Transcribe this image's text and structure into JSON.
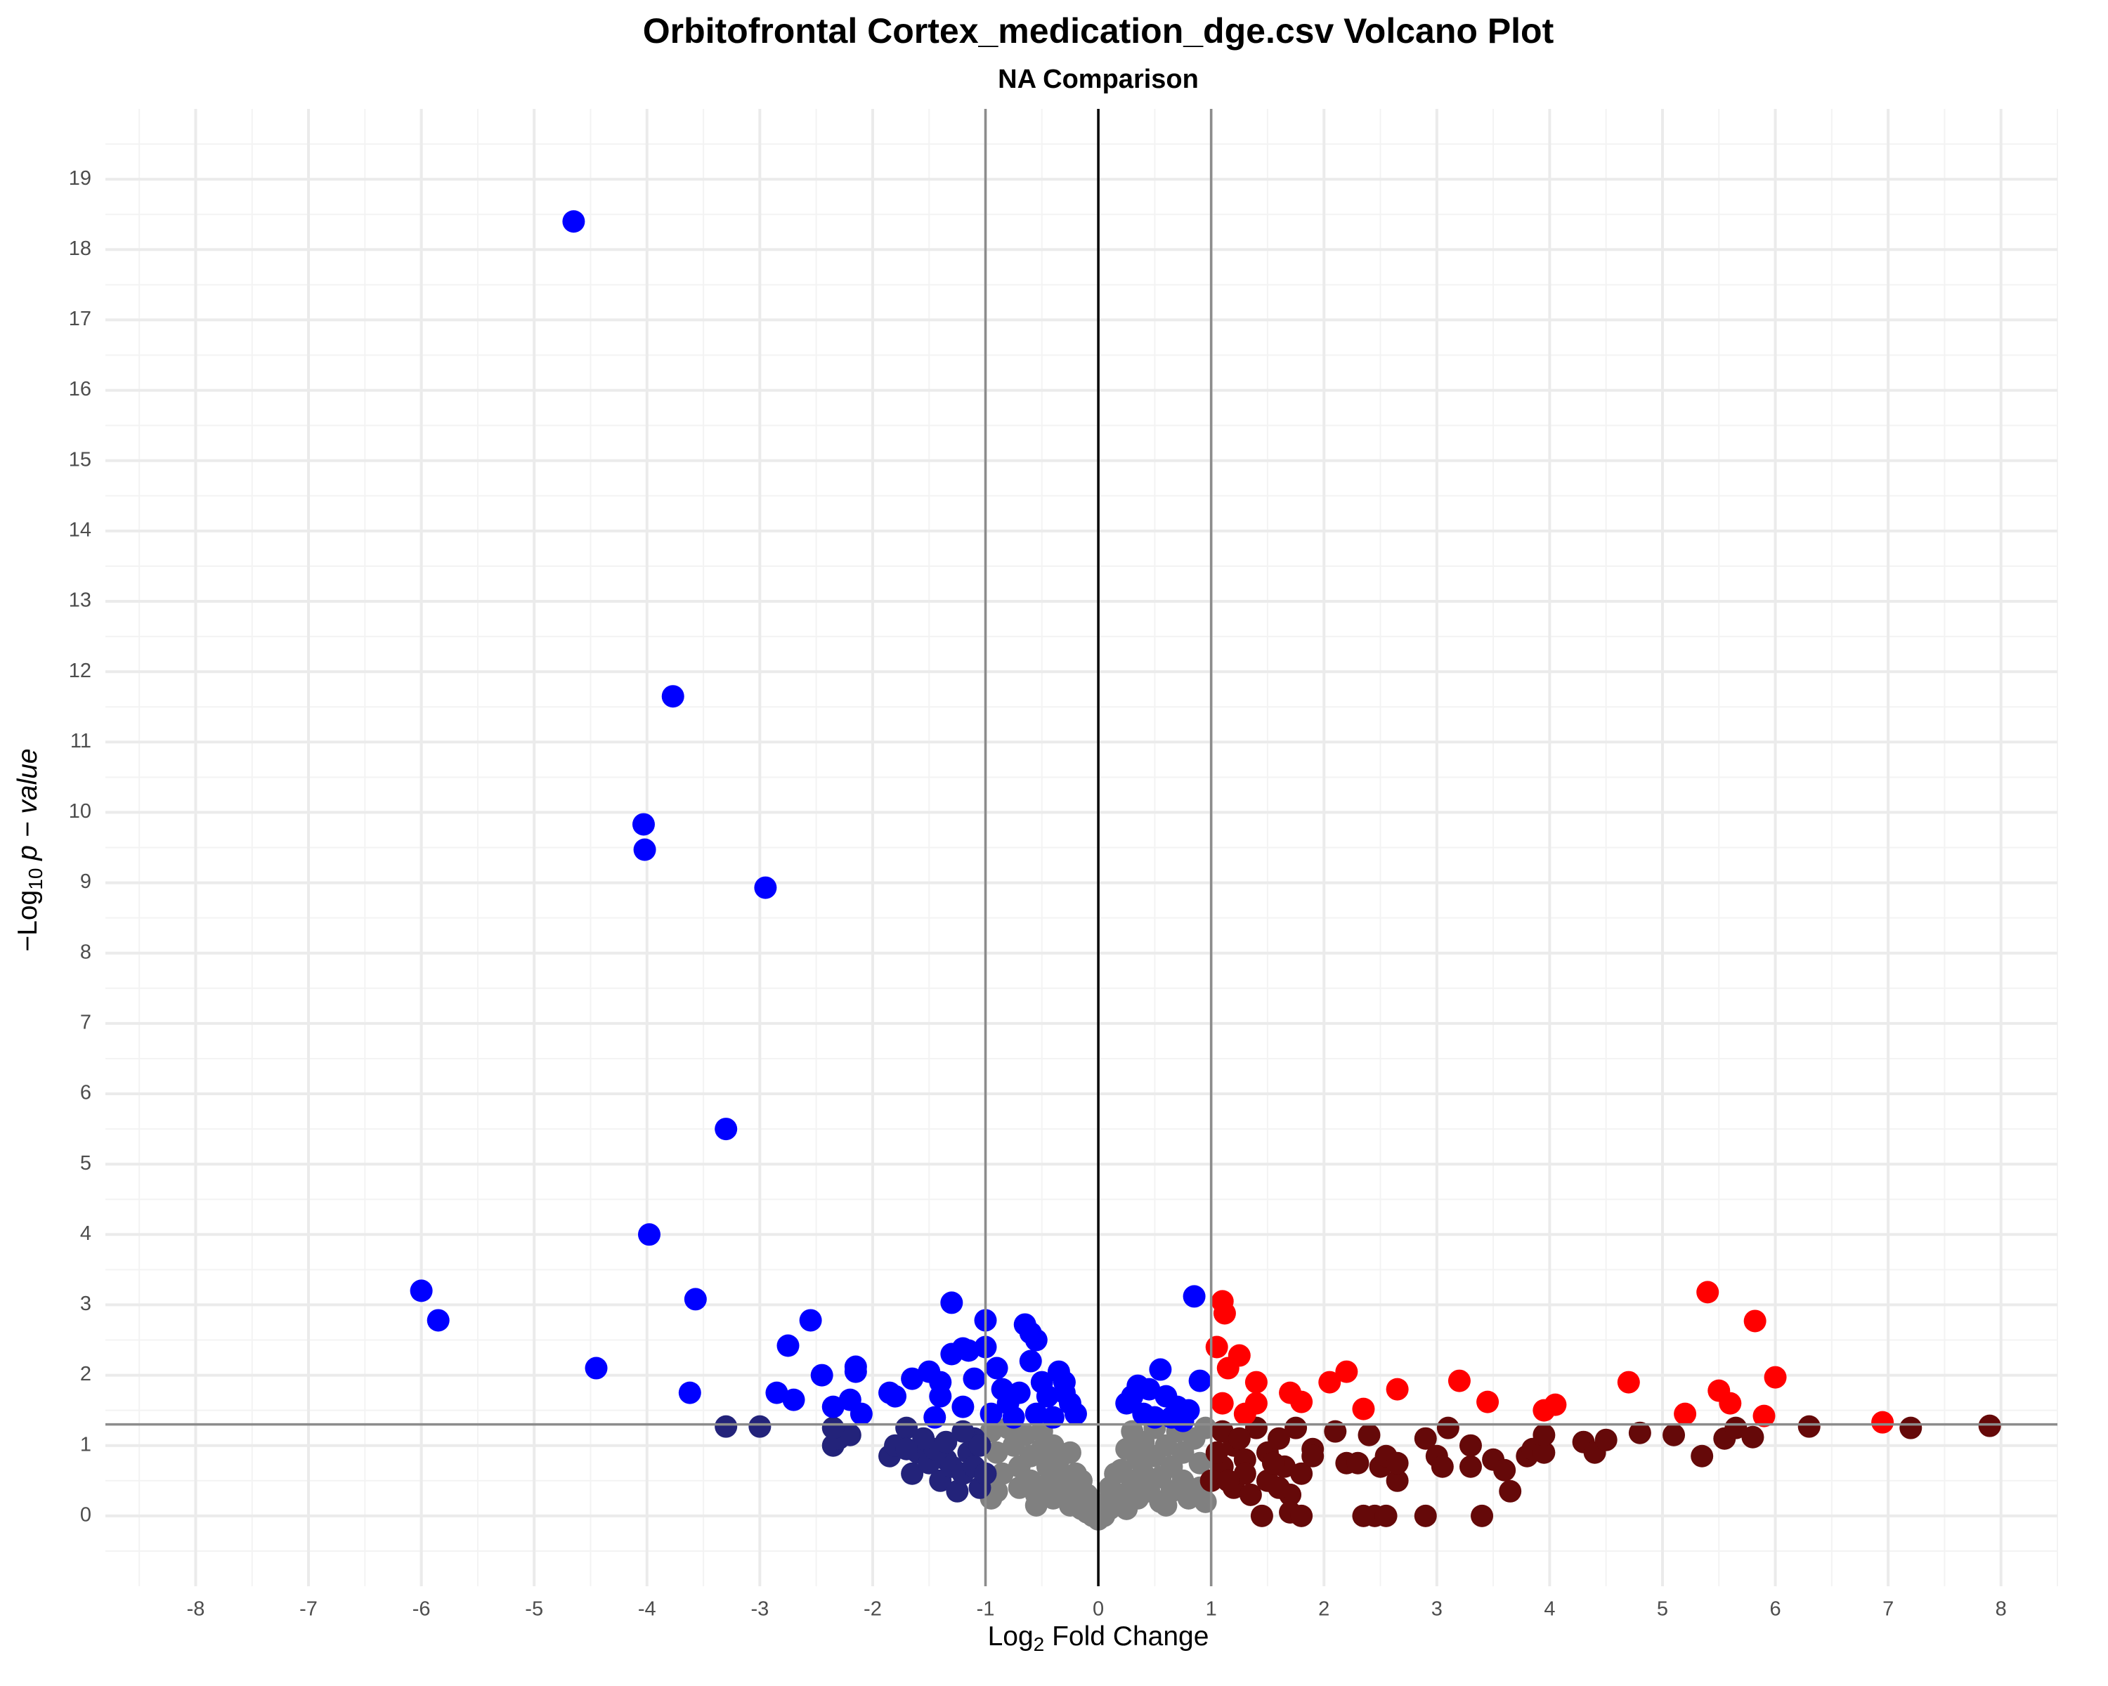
{
  "chart_data": {
    "type": "scatter",
    "title": "Orbitofrontal Cortex_medication_dge.csv Volcano Plot",
    "subtitle": "NA Comparison",
    "x_label": [
      "Log",
      "2",
      " Fold Change"
    ],
    "y_label": [
      "−Log",
      "10",
      " p − value"
    ],
    "xlim": [
      -8.8,
      8.5
    ],
    "ylim": [
      -1,
      20
    ],
    "xticks": [
      -8,
      -7,
      -6,
      -5,
      -4,
      -3,
      -2,
      -1,
      0,
      1,
      2,
      3,
      4,
      5,
      6,
      7,
      8
    ],
    "yticks": [
      0,
      1,
      2,
      3,
      4,
      5,
      6,
      7,
      8,
      9,
      10,
      11,
      12,
      13,
      14,
      15,
      16,
      17,
      18,
      19
    ],
    "x_minor_ticks": [
      -8.5,
      -7.5,
      -6.5,
      -5.5,
      -4.5,
      -3.5,
      -2.5,
      -1.5,
      -0.5,
      0.5,
      1.5,
      2.5,
      3.5,
      4.5,
      5.5,
      6.5,
      7.5,
      8.5
    ],
    "y_minor_ticks": [
      -0.5,
      0.5,
      1.5,
      2.5,
      3.5,
      4.5,
      5.5,
      6.5,
      7.5,
      8.5,
      9.5,
      10.5,
      11.5,
      12.5,
      13.5,
      14.5,
      15.5,
      16.5,
      17.5,
      18.5,
      19.5
    ],
    "grid": true,
    "vlines": [
      {
        "value": -1,
        "color": "#8c8c8c"
      },
      {
        "value": 0,
        "color": "#000000"
      },
      {
        "value": 1,
        "color": "#8c8c8c"
      }
    ],
    "hlines": [
      {
        "value": 1.3,
        "color": "#8c8c8c"
      }
    ],
    "series": [
      {
        "color": "#808080",
        "x": [
          -0.95,
          -0.9,
          -0.85,
          -0.9,
          -0.8,
          -0.75,
          -0.7,
          -0.7,
          -0.65,
          -0.6,
          -0.6,
          -0.55,
          -0.5,
          -0.5,
          -0.45,
          -0.45,
          -0.4,
          -0.4,
          -0.35,
          -0.3,
          -0.3,
          -0.25,
          -0.25,
          -0.2,
          -0.2,
          -0.15,
          -0.1,
          -0.1,
          -0.05,
          0,
          0.05,
          0.1,
          0.1,
          0.15,
          0.2,
          0.2,
          0.25,
          0.25,
          0.3,
          0.3,
          0.35,
          0.35,
          0.4,
          0.4,
          0.45,
          0.5,
          0.5,
          0.55,
          0.55,
          0.6,
          0.65,
          0.65,
          0.7,
          0.75,
          0.75,
          0.8,
          0.85,
          0.9,
          0.9,
          0.95,
          0.95,
          -0.95,
          -0.15,
          0.15,
          0,
          -0.05,
          0.6,
          -0.55
        ],
        "y": [
          1.2,
          0.9,
          0.6,
          0.35,
          1.25,
          1.0,
          0.7,
          0.4,
          1.15,
          0.85,
          0.5,
          0.3,
          1.2,
          0.95,
          0.7,
          0.45,
          0.25,
          1.0,
          0.8,
          0.55,
          0.3,
          0.15,
          0.9,
          0.6,
          0.35,
          0.1,
          0.3,
          0.05,
          0,
          -0.05,
          0,
          0.1,
          0.4,
          0.2,
          0.65,
          0.3,
          0.95,
          0.1,
          0.5,
          1.2,
          0.8,
          0.25,
          1.05,
          0.6,
          0.35,
          1.25,
          0.85,
          0.55,
          0.2,
          1.0,
          0.7,
          0.35,
          1.2,
          0.9,
          0.5,
          0.25,
          1.1,
          0.75,
          0.4,
          1.25,
          0.2,
          0.25,
          0.5,
          0.6,
          0.15,
          0.2,
          0.15,
          0.15
        ]
      },
      {
        "color": "#23237a",
        "x": [
          -3.3,
          -3.0,
          -2.35,
          -2.3,
          -2.2,
          -2.35,
          -1.85,
          -1.8,
          -1.7,
          -1.65,
          -1.6,
          -1.5,
          -1.45,
          -1.4,
          -1.35,
          -1.3,
          -1.25,
          -1.2,
          -1.15,
          -1.1,
          -1.05,
          -1.2,
          -1.35,
          -1.55,
          -1.1,
          -1.7,
          -1.0,
          -1.05
        ],
        "y": [
          1.27,
          1.27,
          1.0,
          1.1,
          1.15,
          1.25,
          0.85,
          1.0,
          1.25,
          0.6,
          0.9,
          0.75,
          0.95,
          0.5,
          0.8,
          0.7,
          0.35,
          0.6,
          0.9,
          1.1,
          0.4,
          1.2,
          1.05,
          1.1,
          0.7,
          0.95,
          0.6,
          1.0
        ]
      },
      {
        "color": "#650909",
        "x": [
          1.1,
          1.2,
          1.3,
          1.4,
          1.5,
          1.5,
          1.45,
          1.6,
          1.65,
          1.7,
          1.75,
          1.8,
          1.7,
          1.8,
          1.9,
          2.1,
          2.2,
          2.3,
          2.4,
          2.45,
          2.55,
          2.35,
          2.5,
          2.55,
          2.65,
          2.65,
          2.9,
          2.9,
          3.0,
          3.05,
          3.1,
          3.3,
          3.3,
          3.4,
          3.5,
          3.6,
          3.65,
          3.8,
          3.85,
          3.95,
          3.95,
          4.3,
          4.4,
          4.5,
          4.8,
          5.1,
          5.35,
          5.55,
          5.65,
          5.8,
          6.3,
          7.2,
          7.9,
          1.2,
          1.3,
          1.35,
          1.1,
          1.25,
          1.55,
          1.6,
          1.9,
          1.0,
          1.05,
          1.15
        ],
        "y": [
          1.2,
          1.0,
          0.8,
          1.25,
          0.9,
          0.5,
          0.0,
          1.1,
          0.7,
          0.3,
          1.25,
          0.6,
          0.05,
          0.0,
          0.95,
          1.2,
          0.75,
          0.75,
          1.15,
          0.0,
          0.0,
          0.0,
          0.7,
          0.85,
          0.5,
          0.75,
          1.1,
          0.0,
          0.85,
          0.7,
          1.25,
          0.7,
          1.0,
          0.0,
          0.8,
          0.65,
          0.35,
          0.85,
          0.95,
          0.9,
          1.15,
          1.05,
          0.9,
          1.08,
          1.18,
          1.15,
          0.85,
          1.1,
          1.25,
          1.12,
          1.27,
          1.25,
          1.28,
          0.4,
          0.6,
          0.3,
          0.7,
          1.1,
          0.75,
          0.4,
          0.85,
          0.5,
          0.9,
          0.5
        ]
      },
      {
        "color": "#0000ff",
        "x": [
          -4.65,
          -3.77,
          -4.03,
          -4.02,
          -2.95,
          -3.3,
          -3.98,
          -6.0,
          -5.85,
          -3.57,
          -4.45,
          -3.62,
          -2.55,
          -2.75,
          -2.45,
          -2.85,
          -2.7,
          -2.35,
          -2.2,
          -2.15,
          -2.15,
          -2.1,
          -1.85,
          -1.8,
          -1.65,
          -1.5,
          -1.4,
          -1.3,
          -1.3,
          -1.2,
          -1.15,
          -1.0,
          -1.0,
          -0.9,
          -0.85,
          -0.8,
          -0.7,
          -0.65,
          -0.6,
          -0.55,
          -0.6,
          -0.5,
          -0.45,
          -0.35,
          -0.3,
          -0.3,
          -0.25,
          -0.2,
          -1.4,
          -1.45,
          -1.2,
          -1.1,
          -0.95,
          -0.75,
          -0.55,
          -0.4,
          0.25,
          0.3,
          0.35,
          0.45,
          0.55,
          0.6,
          0.7,
          0.8,
          0.85,
          0.9,
          0.4,
          0.5,
          0.65,
          0.75
        ],
        "y": [
          18.4,
          11.65,
          9.83,
          9.47,
          8.93,
          5.5,
          4.0,
          3.2,
          2.78,
          3.08,
          2.1,
          1.75,
          2.78,
          2.42,
          2.0,
          1.75,
          1.65,
          1.55,
          1.65,
          2.12,
          2.05,
          1.45,
          1.75,
          1.7,
          1.95,
          2.05,
          1.9,
          3.03,
          2.3,
          2.38,
          2.35,
          2.78,
          2.4,
          2.1,
          1.8,
          1.6,
          1.75,
          2.72,
          2.6,
          2.5,
          2.2,
          1.9,
          1.7,
          2.05,
          1.9,
          1.75,
          1.6,
          1.45,
          1.7,
          1.4,
          1.55,
          1.95,
          1.45,
          1.4,
          1.45,
          1.4,
          1.6,
          1.7,
          1.85,
          1.8,
          2.08,
          1.7,
          1.55,
          1.5,
          3.12,
          1.92,
          1.45,
          1.4,
          1.4,
          1.35
        ]
      },
      {
        "color": "#ff0000",
        "x": [
          1.1,
          1.12,
          1.05,
          1.25,
          1.15,
          1.4,
          1.1,
          1.4,
          1.3,
          1.7,
          1.8,
          2.05,
          2.2,
          2.35,
          2.65,
          3.2,
          3.45,
          3.95,
          4.05,
          4.7,
          5.2,
          5.4,
          5.5,
          5.6,
          5.82,
          5.9,
          6.0,
          6.95
        ],
        "y": [
          3.05,
          2.88,
          2.4,
          2.28,
          2.1,
          1.9,
          1.6,
          1.6,
          1.45,
          1.75,
          1.62,
          1.9,
          2.05,
          1.52,
          1.8,
          1.92,
          1.62,
          1.5,
          1.58,
          1.9,
          1.45,
          3.18,
          1.78,
          1.6,
          2.77,
          1.42,
          1.97,
          1.33
        ]
      }
    ]
  }
}
